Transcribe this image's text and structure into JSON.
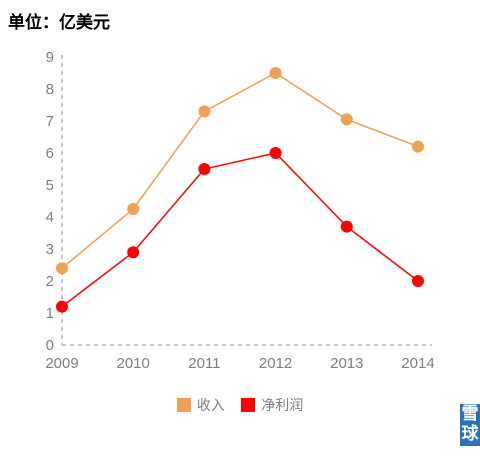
{
  "unit_title": "单位：亿美元",
  "watermark": {
    "chars": [
      "雪",
      "球"
    ]
  },
  "colors": {
    "revenue": "#f0a050",
    "net_income": "#ff0000",
    "axis": "#b0b0b0",
    "tick_text": "#7f7f7f"
  },
  "chart_data": {
    "type": "line",
    "title": "",
    "xlabel": "",
    "ylabel": "",
    "categories": [
      "2009",
      "2010",
      "2011",
      "2012",
      "2013",
      "2014"
    ],
    "ylim": [
      0,
      9
    ],
    "yticks": [
      "0",
      "1",
      "2",
      "3",
      "4",
      "5",
      "6",
      "7",
      "8",
      "9"
    ],
    "grid": false,
    "legend_position": "bottom",
    "series": [
      {
        "name": "收入",
        "color": "#f0a050",
        "values": [
          2.4,
          4.25,
          7.3,
          8.5,
          7.05,
          6.2
        ]
      },
      {
        "name": "净利润",
        "color": "#ff0000",
        "values": [
          1.2,
          2.9,
          5.5,
          6.0,
          3.7,
          2.0
        ]
      }
    ]
  }
}
